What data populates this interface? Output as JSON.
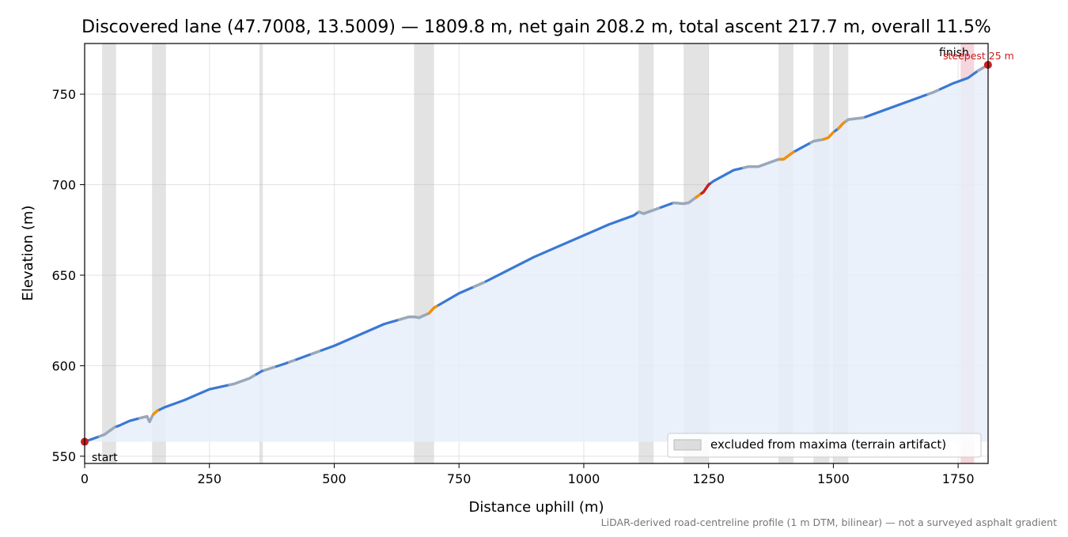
{
  "chart_data": {
    "type": "area",
    "title": "Discovered lane (47.7008, 13.5009) — 1809.8 m, net gain 208.2 m, total ascent 217.7 m, overall 11.5%",
    "xlabel": "Distance uphill (m)",
    "ylabel": "Elevation (m)",
    "xlim": [
      0,
      1810
    ],
    "ylim": [
      546,
      778
    ],
    "x_ticks": [
      0,
      250,
      500,
      750,
      1000,
      1250,
      1500,
      1750
    ],
    "y_ticks": [
      550,
      600,
      650,
      700,
      750
    ],
    "x_tick_labels": [
      "0",
      "250",
      "500",
      "750",
      "1000",
      "1250",
      "1500",
      "1750"
    ],
    "y_tick_labels": [
      "550",
      "600",
      "650",
      "700",
      "750"
    ],
    "grid": true,
    "legend_position": "lower-right",
    "legend": [
      {
        "label": "excluded from maxima (terrain artifact)",
        "color": "#c8c8c8"
      }
    ],
    "footnote": "LiDAR-derived road-centreline profile (1 m DTM, bilinear) — not a surveyed asphalt gradient",
    "annotations": {
      "start": "start",
      "finish": "finish",
      "steepest": "steepest 25 m"
    },
    "colors": {
      "line": "#3a78d4",
      "fill": "#e8eef9",
      "moderate": "#f0900a",
      "steep": "#c81e1e",
      "excluded_segment": "#9aa8b8",
      "band": "#c8c8c8",
      "steepest_band": "#f0c8d0",
      "marker": "#c81e1e"
    },
    "baseline": 558,
    "excluded_bands": [
      [
        35,
        63
      ],
      [
        135,
        163
      ],
      [
        350,
        357
      ],
      [
        660,
        700
      ],
      [
        1110,
        1140
      ],
      [
        1200,
        1250
      ],
      [
        1390,
        1420
      ],
      [
        1460,
        1492
      ],
      [
        1500,
        1530
      ]
    ],
    "steepest_band": [
      1755,
      1782
    ],
    "profile": {
      "x": [
        0,
        20,
        40,
        60,
        70,
        90,
        110,
        125,
        130,
        137,
        145,
        160,
        200,
        250,
        300,
        330,
        355,
        400,
        450,
        500,
        550,
        600,
        650,
        660,
        670,
        690,
        700,
        750,
        800,
        850,
        900,
        950,
        1000,
        1050,
        1100,
        1110,
        1120,
        1140,
        1160,
        1180,
        1200,
        1210,
        1220,
        1240,
        1250,
        1260,
        1300,
        1330,
        1350,
        1380,
        1390,
        1400,
        1420,
        1440,
        1460,
        1480,
        1490,
        1500,
        1510,
        1520,
        1530,
        1560,
        1600,
        1650,
        1700,
        1740,
        1770,
        1790,
        1809.8
      ],
      "y": [
        558,
        560,
        562,
        566,
        567,
        569.5,
        571,
        572,
        569,
        573,
        575,
        577,
        581,
        587,
        590,
        593,
        597,
        601,
        606,
        611,
        617,
        623,
        627,
        627,
        626.5,
        629,
        632,
        640,
        646,
        653,
        660,
        666,
        672,
        678,
        683,
        685,
        684,
        686,
        688,
        690,
        689.5,
        690,
        692,
        696,
        700,
        702,
        708,
        710,
        710,
        713,
        714,
        714,
        718,
        721,
        724,
        725,
        726,
        729,
        731,
        734,
        736,
        737,
        741,
        746,
        751,
        756,
        759,
        763,
        766.2
      ]
    },
    "segments": [
      {
        "x": [
          30,
          60
        ],
        "kind": "excluded"
      },
      {
        "x": [
          110,
          140
        ],
        "kind": "excluded"
      },
      {
        "x": [
          138,
          146
        ],
        "kind": "moderate"
      },
      {
        "x": [
          290,
          340
        ],
        "kind": "excluded"
      },
      {
        "x": [
          360,
          380
        ],
        "kind": "excluded"
      },
      {
        "x": [
          410,
          420
        ],
        "kind": "excluded"
      },
      {
        "x": [
          455,
          470
        ],
        "kind": "excluded"
      },
      {
        "x": [
          630,
          690
        ],
        "kind": "excluded"
      },
      {
        "x": [
          690,
          705
        ],
        "kind": "moderate"
      },
      {
        "x": [
          780,
          800
        ],
        "kind": "excluded"
      },
      {
        "x": [
          1110,
          1150
        ],
        "kind": "excluded"
      },
      {
        "x": [
          1180,
          1225
        ],
        "kind": "excluded"
      },
      {
        "x": [
          1225,
          1236
        ],
        "kind": "moderate"
      },
      {
        "x": [
          1236,
          1252
        ],
        "kind": "steep"
      },
      {
        "x": [
          1320,
          1395
        ],
        "kind": "excluded"
      },
      {
        "x": [
          1395,
          1420
        ],
        "kind": "moderate"
      },
      {
        "x": [
          1455,
          1480
        ],
        "kind": "excluded"
      },
      {
        "x": [
          1480,
          1500
        ],
        "kind": "moderate"
      },
      {
        "x": [
          1510,
          1525
        ],
        "kind": "moderate"
      },
      {
        "x": [
          1525,
          1560
        ],
        "kind": "excluded"
      },
      {
        "x": [
          1690,
          1710
        ],
        "kind": "excluded"
      },
      {
        "x": [
          1790,
          1809.8
        ],
        "kind": "excluded"
      }
    ],
    "markers": [
      {
        "x": 0,
        "y": 558
      },
      {
        "x": 1809.8,
        "y": 766.2
      }
    ]
  }
}
